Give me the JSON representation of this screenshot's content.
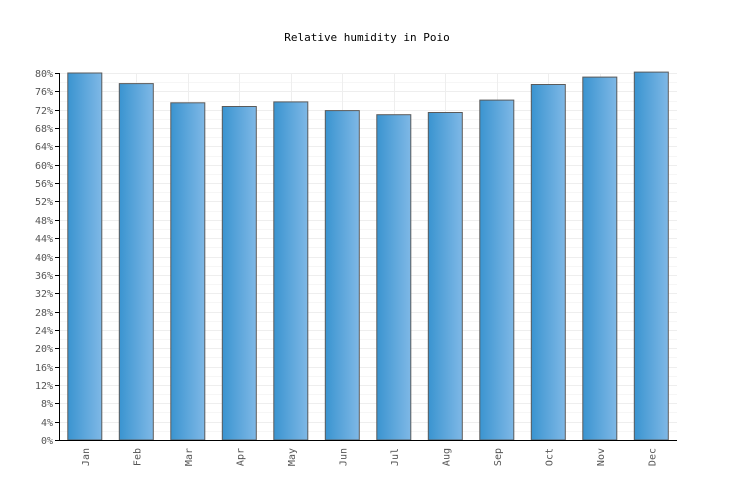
{
  "chart_data": {
    "type": "bar",
    "title": "Relative humidity in Poio",
    "xlabel": "",
    "ylabel": "",
    "categories": [
      "Jan",
      "Feb",
      "Mar",
      "Apr",
      "May",
      "Jun",
      "Jul",
      "Aug",
      "Sep",
      "Oct",
      "Nov",
      "Dec"
    ],
    "values": [
      80,
      77.7,
      73.5,
      72.7,
      73.7,
      71.8,
      70.9,
      71.4,
      74.1,
      77.5,
      79.1,
      80.2
    ],
    "ylim": [
      0,
      80
    ],
    "yticks": [
      0,
      4,
      8,
      12,
      16,
      20,
      24,
      28,
      32,
      36,
      40,
      44,
      48,
      52,
      56,
      60,
      64,
      68,
      72,
      76,
      80
    ],
    "ytick_suffix": "%",
    "grid": true,
    "legend": "none",
    "colors": {
      "bar_light": "#7fb8e6",
      "bar_dark": "#3a94d0",
      "bar_stroke": "#5a5a5a",
      "grid": "#eeeeee",
      "axis": "#000000",
      "tick_label": "#555555",
      "title": "#000000"
    }
  }
}
